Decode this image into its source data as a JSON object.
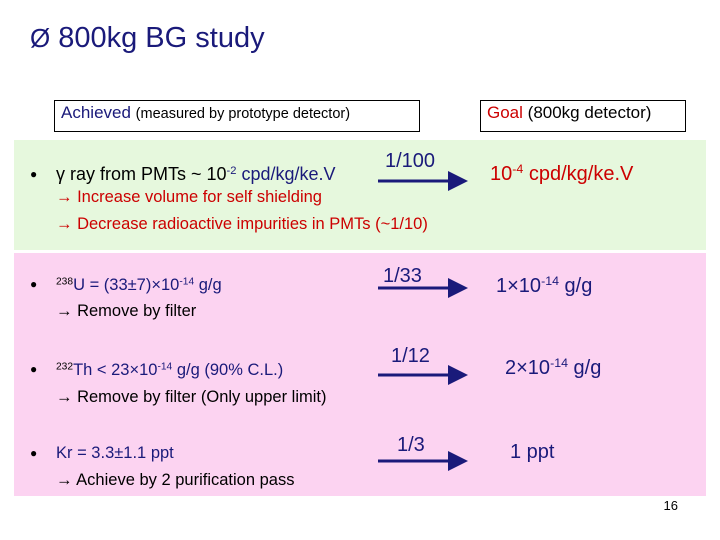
{
  "title": {
    "check_glyph": "Ø",
    "text": "800kg BG study"
  },
  "headers": {
    "achieved_label": "Achieved",
    "achieved_note": "(measured by prototype detector)",
    "goal_label": "Goal",
    "goal_note": "(800kg detector)"
  },
  "items": [
    {
      "lines": [
        {
          "prefix": "γ ray from PMTs ~ 10",
          "sup": "-2",
          "suffix": " cpd/kg/ke.V"
        },
        {
          "text": "→ Increase volume for self shielding"
        },
        {
          "text": "→ Decrease radioactive impurities in PMTs (~1/10)"
        }
      ],
      "ratio": "1/100",
      "goal": {
        "prefix": "10",
        "sup": "-4",
        "suffix": " cpd/kg/ke.V"
      }
    },
    {
      "lines": [
        {
          "pre_sup": "238",
          "prefix": "U = (33±7)×10",
          "sup": "-14",
          "suffix": " g/g"
        },
        {
          "text": "→ Remove by filter"
        }
      ],
      "ratio": "1/33",
      "goal": {
        "prefix": "1×10",
        "sup": "-14",
        "suffix": " g/g"
      }
    },
    {
      "lines": [
        {
          "pre_sup": "232",
          "prefix": "Th < 23×10",
          "sup": "-14",
          "suffix": " g/g (90% C.L.)"
        },
        {
          "text": "→ Remove by filter (Only upper limit)"
        }
      ],
      "ratio": "1/12",
      "goal": {
        "prefix": "2×10",
        "sup": "-14",
        "suffix": " g/g"
      }
    },
    {
      "lines": [
        {
          "text": "Kr = 3.3±1.1 ppt"
        },
        {
          "text": "→ Achieve by 2 purification pass"
        }
      ],
      "ratio": "1/3",
      "goal": {
        "text": "1 ppt"
      }
    }
  ],
  "page_number": "16",
  "colors": {
    "navy": "#1a1a7a",
    "red": "#cc0000",
    "green_bg": "#e6f8dd",
    "pink_bg": "#fcd3f1"
  }
}
